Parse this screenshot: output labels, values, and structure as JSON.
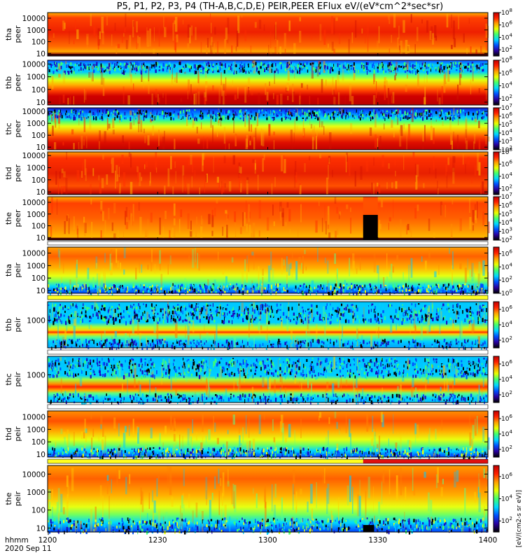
{
  "chart_data": {
    "type": "heatmap",
    "title": "P5, P1, P2, P3, P4 (TH-A,B,C,D,E) PEIR,PEER EFlux eV/(eV*cm^2*sec*sr)",
    "time_axis": {
      "label": "hhmm",
      "date": "2020 Sep 11",
      "ticks": [
        "1200",
        "1230",
        "1300",
        "1330",
        "1400"
      ],
      "range_minutes": [
        0,
        120
      ]
    },
    "colorbar_label": "[eV/(cm2-s sr eV)]",
    "colorscale": [
      "#000000",
      "#2a00a0",
      "#0050ff",
      "#00d8ff",
      "#40ff70",
      "#e8ff00",
      "#ffa000",
      "#ff2000",
      "#c00000"
    ],
    "panels": [
      {
        "probe": "tha",
        "label": "tha peer",
        "line1": "tha",
        "line2": "peer",
        "yscale": "log",
        "yrange": [
          6,
          30000
        ],
        "yticks": [
          "10",
          "100",
          "1000",
          "10000"
        ],
        "cbticks": [
          "10^2",
          "10^4",
          "10^6",
          "10^8"
        ],
        "cbrange": [
          10,
          100000000.0
        ],
        "sample_grid": {
          "energy_eV": [
            10,
            100,
            1000,
            10000
          ],
          "z_log10": [
            [
              6.6,
              7.2,
              7.7,
              7.5
            ],
            [
              6.9,
              7.4,
              7.8,
              7.3
            ],
            [
              7.1,
              7.6,
              7.9,
              7.0
            ],
            [
              6.8,
              7.3,
              7.7,
              7.4
            ]
          ]
        }
      },
      {
        "probe": "thb",
        "label": "thb peer",
        "line1": "thb",
        "line2": "peer",
        "yscale": "log",
        "yrange": [
          6,
          20000
        ],
        "yticks": [
          "10",
          "100",
          "1000",
          "10000"
        ],
        "cbticks": [
          "10^2",
          "10^4",
          "10^6",
          "10^8"
        ],
        "cbrange": [
          10,
          100000000.0
        ],
        "sample_grid": {
          "energy_eV": [
            10,
            100,
            1000,
            10000
          ],
          "z_log10": [
            [
              7.8,
              7.0,
              5.2,
              3.3
            ],
            [
              7.8,
              7.0,
              5.2,
              3.2
            ]
          ]
        }
      },
      {
        "probe": "thc",
        "label": "thc peer",
        "line1": "thc",
        "line2": "peer",
        "yscale": "log",
        "yrange": [
          6,
          20000
        ],
        "yticks": [
          "10",
          "100",
          "1000",
          "10000"
        ],
        "cbticks": [
          "10^2",
          "10^3",
          "10^4",
          "10^5",
          "10^6",
          "10^7"
        ],
        "cbrange": [
          100,
          10000000.0
        ],
        "sample_grid": {
          "energy_eV": [
            10,
            100,
            1000,
            10000
          ],
          "z_log10": [
            [
              6.8,
              6.2,
              4.8,
              3.1
            ],
            [
              6.8,
              6.2,
              4.8,
              3.0
            ]
          ]
        }
      },
      {
        "probe": "thd",
        "label": "thd peer",
        "line1": "thd",
        "line2": "peer",
        "yscale": "log",
        "yrange": [
          6,
          20000
        ],
        "yticks": [
          "10",
          "100",
          "1000",
          "10000"
        ],
        "cbticks": [
          "10^2",
          "10^4",
          "10^6",
          "10^8"
        ],
        "cbrange": [
          10,
          100000000.0
        ],
        "sample_grid": {
          "energy_eV": [
            10,
            100,
            1000,
            10000
          ],
          "z_log10": [
            [
              7.0,
              7.5,
              7.6,
              7.2
            ],
            [
              7.1,
              7.6,
              7.7,
              7.0
            ]
          ]
        }
      },
      {
        "probe": "the",
        "label": "the peer",
        "line1": "the",
        "line2": "peer",
        "yscale": "log",
        "yrange": [
          6,
          30000
        ],
        "yticks": [
          "10",
          "100",
          "1000",
          "10000"
        ],
        "cbticks": [
          "10^2",
          "10^3",
          "10^4",
          "10^5",
          "10^6",
          "10^7"
        ],
        "cbrange": [
          100,
          10000000.0
        ],
        "gap_minutes": [
          86,
          90
        ],
        "sample_grid": {
          "energy_eV": [
            10,
            100,
            1000,
            10000
          ],
          "z_log10": [
            [
              6.1,
              6.5,
              6.7,
              6.4
            ],
            [
              6.3,
              6.6,
              6.8,
              6.2
            ]
          ]
        }
      },
      {
        "probe": "tha",
        "label": "tha peir",
        "line1": "tha",
        "line2": "peir",
        "yscale": "log",
        "yrange": [
          6,
          30000
        ],
        "yticks": [
          "10",
          "100",
          "1000",
          "10000"
        ],
        "cbticks": [
          "10^0",
          "10^2",
          "10^4",
          "10^6"
        ],
        "cbrange": [
          1,
          10000000.0
        ],
        "sample_grid": {
          "energy_eV": [
            10,
            100,
            1000,
            10000
          ],
          "z_log10": [
            [
              2.0,
              4.5,
              5.8,
              6.0
            ],
            [
              1.8,
              4.3,
              5.9,
              6.1
            ]
          ]
        }
      },
      {
        "probe": "thb",
        "label": "thb peir",
        "line1": "thb",
        "line2": "peir",
        "yscale": "log",
        "yrange": [
          6,
          30000
        ],
        "yticks": [
          "1000"
        ],
        "cbticks": [
          "10^2",
          "10^4",
          "10^6"
        ],
        "cbrange": [
          10,
          10000000.0
        ],
        "sample_grid": {
          "energy_eV": [
            10,
            100,
            1000,
            10000
          ],
          "z_log10": [
            [
              2.5,
              4.8,
              3.2,
              3.0
            ]
          ]
        }
      },
      {
        "probe": "thc",
        "label": "thc peir",
        "line1": "thc",
        "line2": "peir",
        "yscale": "log",
        "yrange": [
          6,
          30000
        ],
        "yticks": [
          "1000"
        ],
        "cbticks": [
          "10^2",
          "10^4",
          "10^6"
        ],
        "cbrange": [
          10,
          10000000.0
        ],
        "sample_grid": {
          "energy_eV": [
            10,
            100,
            1000,
            10000
          ],
          "z_log10": [
            [
              3.0,
              5.5,
              3.2,
              2.5
            ]
          ]
        }
      },
      {
        "probe": "thd",
        "label": "thd peir",
        "line1": "thd",
        "line2": "peir",
        "yscale": "log",
        "yrange": [
          6,
          30000
        ],
        "yticks": [
          "10",
          "100",
          "1000",
          "10000"
        ],
        "cbticks": [
          "10^2",
          "10^4",
          "10^6"
        ],
        "cbrange": [
          10,
          10000000.0
        ],
        "sample_grid": {
          "energy_eV": [
            10,
            100,
            1000,
            10000
          ],
          "z_log10": [
            [
              2.0,
              4.5,
              5.9,
              6.0
            ]
          ]
        }
      },
      {
        "probe": "the",
        "label": "the peir",
        "line1": "the",
        "line2": "peir",
        "yscale": "log",
        "yrange": [
          6,
          30000
        ],
        "yticks": [
          "10",
          "100",
          "1000",
          "10000"
        ],
        "cbticks": [
          "10^2",
          "10^4",
          "10^6"
        ],
        "cbrange": [
          10,
          10000000.0
        ],
        "gap_minutes": [
          86,
          89
        ],
        "sample_grid": {
          "energy_eV": [
            10,
            100,
            1000,
            10000
          ],
          "z_log10": [
            [
              2.2,
              4.6,
              5.9,
              6.0
            ]
          ]
        }
      }
    ],
    "mode_bars": [
      {
        "after_panel": 4,
        "segments": [
          {
            "t0": 0,
            "t1": 120,
            "color": "#ffffff"
          }
        ]
      },
      {
        "after_panel": 5,
        "segments": [
          {
            "t0": 0,
            "t1": 120,
            "color": "#ffff20"
          }
        ]
      },
      {
        "after_panel": 6,
        "segments": [
          {
            "t0": 0,
            "t1": 120,
            "color": "#ffffff"
          }
        ]
      },
      {
        "after_panel": 7,
        "segments": [
          {
            "t0": 0,
            "t1": 120,
            "color": "#ffffff"
          }
        ]
      },
      {
        "after_panel": 8,
        "segments": [
          {
            "t0": 0,
            "t1": 86,
            "color": "#ffff20"
          },
          {
            "t0": 86,
            "t1": 120,
            "color": "#e01010"
          }
        ]
      }
    ]
  }
}
